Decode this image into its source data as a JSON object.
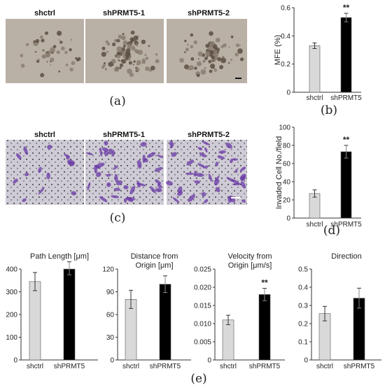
{
  "panels": {
    "a": {
      "letter": "(a)",
      "image_labels": [
        "shctrl",
        "shPRMT5-1",
        "shPRMT5-2"
      ]
    },
    "b": {
      "letter": "(b)"
    },
    "c": {
      "letter": "(c)",
      "image_labels": [
        "shctrl",
        "shPRMT5-1",
        "shPRMT5-2"
      ]
    },
    "d": {
      "letter": "(d)"
    },
    "e": {
      "letter": "(e)"
    }
  },
  "colors": {
    "ctrl_bar": "#d9d9d9",
    "prmt_bar": "#000000",
    "axis": "#333333",
    "colony_bg": "#b9b0a6",
    "invasion_bg": "#cfcbd6",
    "stain": "#6a3aa6"
  },
  "chart_data": [
    {
      "id": "b",
      "type": "bar",
      "categories": [
        "shctrl",
        "shPRMT5"
      ],
      "values": [
        0.33,
        0.53
      ],
      "errors": [
        0.02,
        0.03
      ],
      "ylabel": "MFE (%)",
      "ylim": [
        0,
        0.6
      ],
      "yticks": [
        "0",
        "0.2",
        "0.4",
        "0.6"
      ],
      "significance": [
        "",
        "**"
      ]
    },
    {
      "id": "d",
      "type": "bar",
      "categories": [
        "shctrl",
        "shPRMT5"
      ],
      "values": [
        27,
        73
      ],
      "errors": [
        4,
        7
      ],
      "ylabel": "Invaded Cell No./field",
      "ylim": [
        0,
        100
      ],
      "yticks": [
        "0",
        "20",
        "40",
        "60",
        "80",
        "100"
      ],
      "significance": [
        "",
        "**"
      ]
    },
    {
      "id": "e1",
      "type": "bar",
      "title": "Path Length [μm]",
      "categories": [
        "shctrl",
        "shPRMT5"
      ],
      "values": [
        345,
        420
      ],
      "errors": [
        40,
        45
      ],
      "ylim": [
        0,
        400
      ],
      "yticks": [
        "0",
        "100",
        "200",
        "300",
        "400"
      ],
      "significance": [
        "",
        ""
      ]
    },
    {
      "id": "e2",
      "type": "bar",
      "title": "Distance from Origin [μm]",
      "categories": [
        "shctrl",
        "shPRMT5"
      ],
      "values": [
        80,
        100
      ],
      "errors": [
        12,
        11
      ],
      "ylim": [
        0,
        120
      ],
      "yticks": [
        "0",
        "30",
        "60",
        "90",
        "120"
      ],
      "significance": [
        "",
        ""
      ]
    },
    {
      "id": "e3",
      "type": "bar",
      "title": "Velocity from Origin [μm/s]",
      "categories": [
        "shctrl",
        "shPRMT5"
      ],
      "values": [
        0.011,
        0.018
      ],
      "errors": [
        0.0013,
        0.0017
      ],
      "ylim": [
        0,
        0.025
      ],
      "yticks": [
        "0",
        "0.005",
        "0.010",
        "0.015",
        "0.020",
        "0.025"
      ],
      "significance": [
        "",
        "**"
      ]
    },
    {
      "id": "e4",
      "type": "bar",
      "title": "Direction",
      "categories": [
        "shctrl",
        "shPRMT5"
      ],
      "values": [
        0.255,
        0.34
      ],
      "errors": [
        0.04,
        0.055
      ],
      "ylim": [
        0,
        0.5
      ],
      "yticks": [
        "0",
        "0.1",
        "0.2",
        "0.3",
        "0.4",
        "0.5"
      ],
      "significance": [
        "",
        ""
      ]
    }
  ]
}
